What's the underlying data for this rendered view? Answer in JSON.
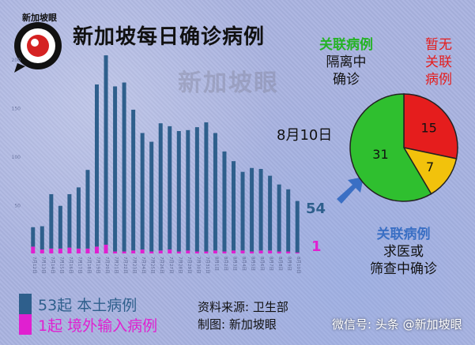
{
  "title": "新加坡每日确诊病例",
  "logo_text": "新加坡眼",
  "watermark": "新加坡眼",
  "date_label": "8月10日",
  "end_labels": {
    "local": "54",
    "imported": "1"
  },
  "legend": {
    "local": "53起 本土病例",
    "imported": "1起  境外输入病例"
  },
  "source": {
    "line1": "资料来源:  卫生部",
    "line2": "制图:  新加坡眼"
  },
  "wechat": "微信号: 头条 @新加坡眼",
  "pie_text": {
    "linked_isolated": [
      "关联病例",
      "隔离中",
      "确诊"
    ],
    "unlinked": [
      "暂无",
      "关联",
      "病例"
    ],
    "linked_screening": [
      "关联病例",
      "求医或",
      "筛查中确诊"
    ]
  },
  "colors": {
    "local": "#2e5f8c",
    "imported": "#e020d0",
    "pie_green": "#2fbf2f",
    "pie_red": "#e51d1d",
    "pie_yellow": "#f2c20c"
  },
  "chart_data": [
    {
      "type": "bar",
      "title": "新加坡每日确诊病例",
      "categories": [
        "7月12日",
        "7月13日",
        "7月14日",
        "7月15日",
        "7月16日",
        "7月17日",
        "7月18日",
        "7月19日",
        "7月20日",
        "7月21日",
        "7月22日",
        "7月23日",
        "7月24日",
        "7月25日",
        "7月26日",
        "7月27日",
        "7月28日",
        "7月29日",
        "7月30日",
        "7月31日",
        "8月1日",
        "8月2日",
        "8月3日",
        "8月4日",
        "8月5日",
        "8月6日",
        "8月7日",
        "8月8日",
        "8月9日",
        "8月10日"
      ],
      "series": [
        {
          "name": "本土病例",
          "values": [
            20,
            24,
            56,
            44,
            55,
            63,
            81,
            167,
            195,
            170,
            174,
            145,
            120,
            113,
            131,
            127,
            124,
            124,
            128,
            133,
            121,
            103,
            92,
            81,
            86,
            84,
            77,
            69,
            64,
            53
          ]
        },
        {
          "name": "境外输入病例",
          "values": [
            7,
            4,
            5,
            5,
            6,
            5,
            5,
            7,
            9,
            2,
            2,
            3,
            4,
            2,
            3,
            4,
            2,
            3,
            2,
            2,
            3,
            2,
            3,
            3,
            2,
            3,
            3,
            2,
            2,
            1
          ]
        }
      ],
      "ylim": [
        0,
        200
      ]
    },
    {
      "type": "pie",
      "labels": [
        "关联病例 隔离中 确诊",
        "暂无关联病例",
        "关联病例 求医或 筛查中确诊"
      ],
      "values": [
        31,
        15,
        7
      ]
    }
  ]
}
